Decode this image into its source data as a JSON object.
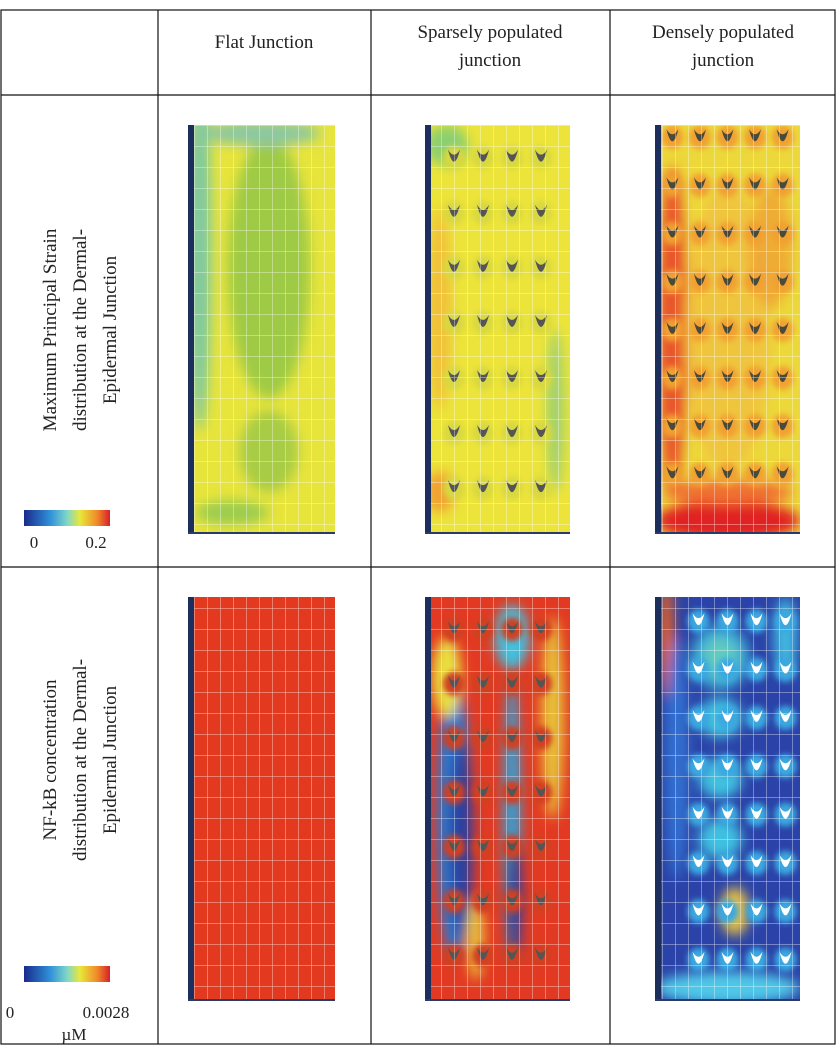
{
  "header": {
    "columns": [
      [
        "Flat  Junction"
      ],
      [
        "Sparsely populated",
        "junction"
      ],
      [
        "Densely populated",
        "junction"
      ]
    ]
  },
  "rows": [
    {
      "label": [
        "Maximum Principal Strain",
        "distribution at the Dermal-",
        "Epidermal Junction"
      ],
      "colorbar": {
        "min": 0,
        "max": 0.2
      }
    },
    {
      "label": [
        "NF-kB concentration",
        "distribution at the Dermal-",
        "Epidermal Junction"
      ],
      "colorbar": {
        "min": 0,
        "max": 0.0028,
        "unit": "µM"
      }
    }
  ]
}
